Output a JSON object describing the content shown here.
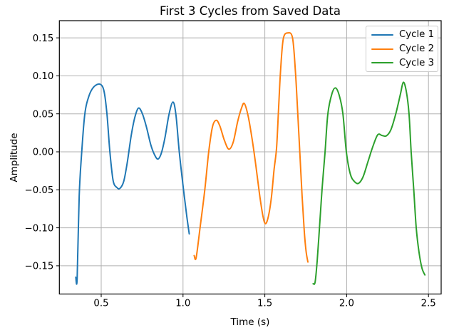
{
  "figure": {
    "background": "#ffffff",
    "frame_color": "#000000",
    "tick_color": "#000000"
  },
  "chart_data": {
    "type": "line",
    "title": "First 3 Cycles from Saved Data",
    "xlabel": "Time (s)",
    "ylabel": "Amplitude",
    "xlim": [
      0.2443,
      2.5774
    ],
    "ylim": [
      -0.1871,
      0.1726
    ],
    "grid": true,
    "grid_color": "#b0b0b0",
    "xticks": {
      "values": [
        0.5,
        1.0,
        1.5,
        2.0,
        2.5
      ],
      "labels": [
        "0.5",
        "1.0",
        "1.5",
        "2.0",
        "2.5"
      ]
    },
    "yticks": {
      "values": [
        0.15,
        0.1,
        0.05,
        0.0,
        -0.05,
        -0.1,
        -0.15
      ],
      "labels": [
        "0.15",
        "0.10",
        "0.05",
        "0.00",
        "−0.05",
        "−0.10",
        "−0.15"
      ]
    },
    "legend": {
      "position": "upper right",
      "entries": [
        "Cycle 1",
        "Cycle 2",
        "Cycle 3"
      ]
    },
    "series": [
      {
        "name": "Cycle 1",
        "color": "#1f77b4",
        "points": [
          [
            0.3445,
            -0.165
          ],
          [
            0.353,
            -0.1665
          ],
          [
            0.3655,
            -0.058
          ],
          [
            0.381,
            0.0
          ],
          [
            0.4,
            0.05
          ],
          [
            0.425,
            0.0735
          ],
          [
            0.455,
            0.0855
          ],
          [
            0.493,
            0.089
          ],
          [
            0.517,
            0.08
          ],
          [
            0.535,
            0.05
          ],
          [
            0.553,
            0.0
          ],
          [
            0.573,
            -0.038
          ],
          [
            0.596,
            -0.047
          ],
          [
            0.615,
            -0.048
          ],
          [
            0.638,
            -0.0385
          ],
          [
            0.66,
            -0.013
          ],
          [
            0.683,
            0.021
          ],
          [
            0.705,
            0.045
          ],
          [
            0.727,
            0.0575
          ],
          [
            0.75,
            0.051
          ],
          [
            0.776,
            0.033
          ],
          [
            0.802,
            0.01
          ],
          [
            0.824,
            -0.003
          ],
          [
            0.846,
            -0.0095
          ],
          [
            0.867,
            -0.002
          ],
          [
            0.889,
            0.018
          ],
          [
            0.915,
            0.05
          ],
          [
            0.939,
            0.0655
          ],
          [
            0.957,
            0.048
          ],
          [
            0.977,
            0.0
          ],
          [
            1.003,
            -0.05
          ],
          [
            1.023,
            -0.085
          ],
          [
            1.038,
            -0.108
          ]
        ]
      },
      {
        "name": "Cycle 2",
        "color": "#ff7f0e",
        "points": [
          [
            1.068,
            -0.1365
          ],
          [
            1.08,
            -0.1395
          ],
          [
            1.104,
            -0.1
          ],
          [
            1.133,
            -0.05
          ],
          [
            1.157,
            0.0
          ],
          [
            1.18,
            0.033
          ],
          [
            1.203,
            0.0415
          ],
          [
            1.225,
            0.034
          ],
          [
            1.253,
            0.015
          ],
          [
            1.28,
            0.0035
          ],
          [
            1.307,
            0.013
          ],
          [
            1.334,
            0.04
          ],
          [
            1.358,
            0.058
          ],
          [
            1.375,
            0.0635
          ],
          [
            1.398,
            0.047
          ],
          [
            1.422,
            0.017
          ],
          [
            1.445,
            -0.018
          ],
          [
            1.467,
            -0.055
          ],
          [
            1.487,
            -0.083
          ],
          [
            1.503,
            -0.0945
          ],
          [
            1.521,
            -0.0855
          ],
          [
            1.54,
            -0.06
          ],
          [
            1.556,
            -0.024
          ],
          [
            1.5715,
            0.005
          ],
          [
            1.5835,
            0.055
          ],
          [
            1.5955,
            0.105
          ],
          [
            1.6125,
            0.1485
          ],
          [
            1.641,
            0.1565
          ],
          [
            1.6695,
            0.1495
          ],
          [
            1.687,
            0.105
          ],
          [
            1.7,
            0.055
          ],
          [
            1.7135,
            0.0
          ],
          [
            1.7275,
            -0.058
          ],
          [
            1.741,
            -0.105
          ],
          [
            1.752,
            -0.131
          ],
          [
            1.763,
            -0.145
          ]
        ]
      },
      {
        "name": "Cycle 3",
        "color": "#2ca02c",
        "points": [
          [
            1.795,
            -0.1735
          ],
          [
            1.807,
            -0.1715
          ],
          [
            1.82,
            -0.143
          ],
          [
            1.835,
            -0.096
          ],
          [
            1.85,
            -0.048
          ],
          [
            1.868,
            0.0
          ],
          [
            1.885,
            0.05
          ],
          [
            1.91,
            0.0765
          ],
          [
            1.932,
            0.0841
          ],
          [
            1.955,
            0.074
          ],
          [
            1.977,
            0.05
          ],
          [
            1.998,
            0.0
          ],
          [
            2.022,
            -0.029
          ],
          [
            2.047,
            -0.039
          ],
          [
            2.072,
            -0.0415
          ],
          [
            2.1,
            -0.033
          ],
          [
            2.13,
            -0.013
          ],
          [
            2.16,
            0.007
          ],
          [
            2.19,
            0.0225
          ],
          [
            2.216,
            0.0215
          ],
          [
            2.242,
            0.021
          ],
          [
            2.27,
            0.029
          ],
          [
            2.3,
            0.05
          ],
          [
            2.328,
            0.0755
          ],
          [
            2.346,
            0.0915
          ],
          [
            2.364,
            0.08
          ],
          [
            2.381,
            0.05
          ],
          [
            2.394,
            0.0
          ],
          [
            2.41,
            -0.05
          ],
          [
            2.425,
            -0.1
          ],
          [
            2.442,
            -0.132
          ],
          [
            2.46,
            -0.153
          ],
          [
            2.478,
            -0.162
          ]
        ]
      }
    ]
  }
}
